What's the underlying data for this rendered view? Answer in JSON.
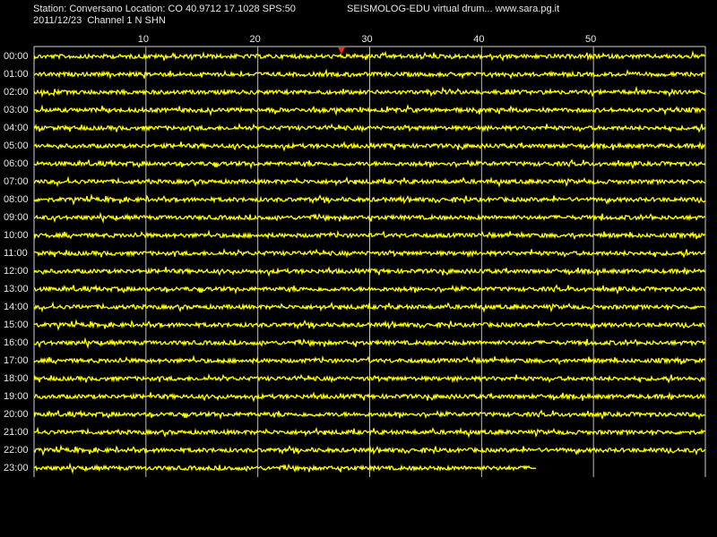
{
  "header": {
    "station": "Station: Conversano Location: CO 40.9712 17.1028 SPS:50",
    "source": "SEISMOLOG-EDU virtual drum... www.sara.pg.it",
    "date_channel": "2011/12/23  Channel 1 N SHN"
  },
  "minute_ticks": [
    10,
    20,
    30,
    40,
    50
  ],
  "hours": [
    "00:00",
    "01:00",
    "02:00",
    "03:00",
    "04:00",
    "05:00",
    "06:00",
    "07:00",
    "08:00",
    "09:00",
    "10:00",
    "11:00",
    "12:00",
    "13:00",
    "14:00",
    "15:00",
    "16:00",
    "17:00",
    "18:00",
    "19:00",
    "20:00",
    "21:00",
    "22:00",
    "23:00"
  ]
}
